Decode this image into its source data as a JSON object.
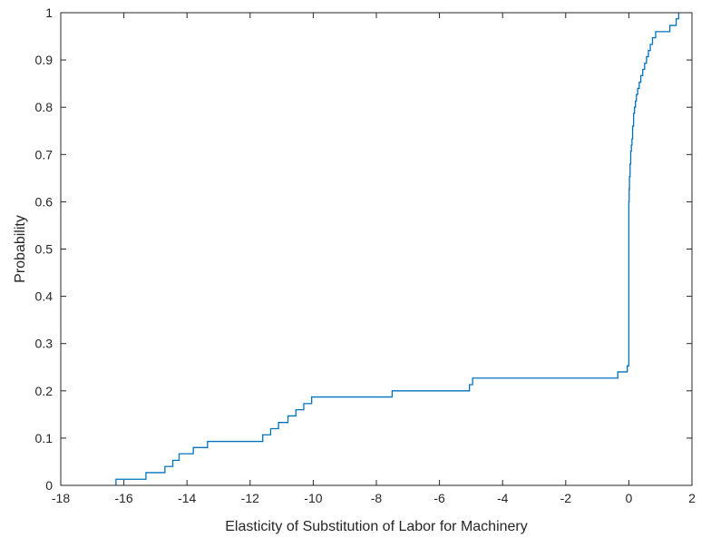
{
  "chart_data": {
    "type": "line",
    "subtype": "empirical-cdf-stairs",
    "title": "",
    "xlabel": "Elasticity of Substitution of Labor for Machinery",
    "ylabel": "Probability",
    "xlim": [
      -18,
      2
    ],
    "ylim": [
      0,
      1
    ],
    "x_ticks": [
      -18,
      -16,
      -14,
      -12,
      -10,
      -8,
      -6,
      -4,
      -2,
      0,
      2
    ],
    "y_ticks": [
      0,
      0.1,
      0.2,
      0.3,
      0.4,
      0.5,
      0.6,
      0.7,
      0.8,
      0.9,
      1
    ],
    "x_tick_labels": [
      "-18",
      "-16",
      "-14",
      "-12",
      "-10",
      "-8",
      "-6",
      "-4",
      "-2",
      "0",
      "2"
    ],
    "y_tick_labels": [
      "0",
      "0.1",
      "0.2",
      "0.3",
      "0.4",
      "0.5",
      "0.6",
      "0.7",
      "0.8",
      "0.9",
      "1"
    ],
    "grid": false,
    "legend": "none",
    "line_color": "#0072bd",
    "series": [
      {
        "x": [
          -16.25,
          -15.3,
          -14.7,
          -14.45,
          -14.25,
          -13.8,
          -13.35,
          -11.6,
          -11.35,
          -11.1,
          -10.8,
          -10.55,
          -10.3,
          -10.05,
          -7.5,
          -5.05,
          -4.95,
          -0.35,
          -0.05,
          0.0,
          0.01,
          0.02,
          0.04,
          0.06,
          0.08,
          0.1,
          0.12,
          0.15,
          0.18,
          0.21,
          0.24,
          0.28,
          0.33,
          0.38,
          0.44,
          0.5,
          0.56,
          0.62,
          0.68,
          0.75,
          0.85,
          1.05,
          1.3,
          1.5,
          1.58
        ],
        "y": [
          0.013,
          0.027,
          0.04,
          0.053,
          0.067,
          0.08,
          0.093,
          0.107,
          0.12,
          0.133,
          0.147,
          0.16,
          0.173,
          0.187,
          0.2,
          0.213,
          0.227,
          0.24,
          0.253,
          0.6,
          0.627,
          0.653,
          0.68,
          0.707,
          0.72,
          0.733,
          0.76,
          0.787,
          0.8,
          0.813,
          0.827,
          0.84,
          0.853,
          0.867,
          0.88,
          0.893,
          0.907,
          0.92,
          0.933,
          0.947,
          0.96,
          0.96,
          0.973,
          0.987,
          1.0
        ]
      }
    ]
  }
}
